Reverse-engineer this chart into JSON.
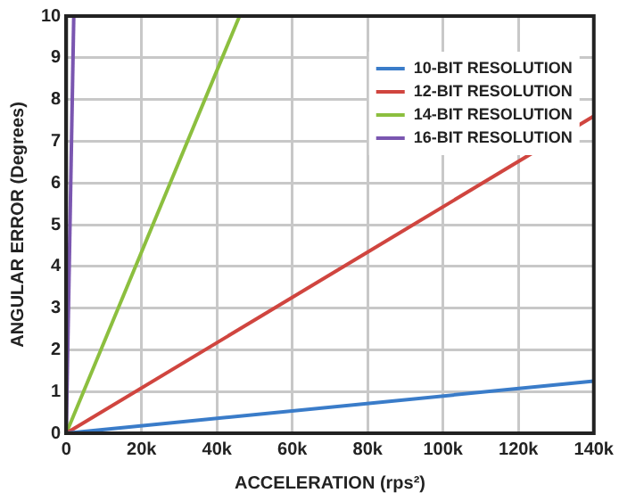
{
  "chart_data": {
    "type": "line",
    "xlabel": "ACCELERATION (rps²)",
    "ylabel": "ANGULAR ERROR (Degrees)",
    "xlim": [
      0,
      140000
    ],
    "ylim": [
      0,
      10
    ],
    "xticks": [
      0,
      {
        "value": 20000,
        "label": "20k"
      },
      {
        "value": 40000,
        "label": "40k"
      },
      {
        "value": 60000,
        "label": "60k"
      },
      {
        "value": 80000,
        "label": "80k"
      },
      {
        "value": 100000,
        "label": "100k"
      },
      {
        "value": 120000,
        "label": "120k"
      },
      {
        "value": 140000,
        "label": "140k"
      }
    ],
    "yticks": [
      0,
      1,
      2,
      3,
      4,
      5,
      6,
      7,
      8,
      9,
      10
    ],
    "grid": true,
    "legend": "top right",
    "marker": "none",
    "line_style": "solid",
    "series": [
      {
        "name": "10-BIT RESOLUTION",
        "color": "#3a7cc9",
        "x": [
          0,
          140000
        ],
        "values": [
          0,
          1.25
        ]
      },
      {
        "name": "12-BIT RESOLUTION",
        "color": "#d0453f",
        "x": [
          0,
          140000
        ],
        "values": [
          0,
          7.6
        ]
      },
      {
        "name": "14-BIT RESOLUTION",
        "color": "#8cbf3f",
        "x": [
          0,
          46000
        ],
        "values": [
          0,
          10
        ]
      },
      {
        "name": "16-BIT RESOLUTION",
        "color": "#7a56b0",
        "x": [
          0,
          2000
        ],
        "values": [
          0,
          10
        ]
      }
    ]
  }
}
